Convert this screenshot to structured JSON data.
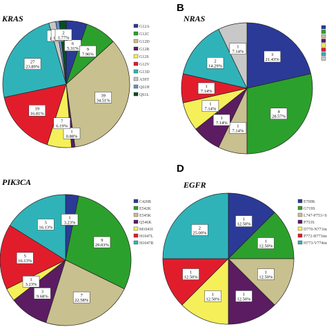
{
  "chart_data": [
    {
      "type": "pie",
      "panel": "",
      "title": "KRAS",
      "series": [
        {
          "name": "G12A",
          "count": 6,
          "percent": "5.31%",
          "color": "#2b3a97"
        },
        {
          "name": "G12C",
          "count": 9,
          "percent": "7.96%",
          "color": "#2ca02c"
        },
        {
          "name": "G12D",
          "count": 39,
          "percent": "34.51%",
          "color": "#c8c08f"
        },
        {
          "name": "G12R",
          "count": 1,
          "percent": "0.88%",
          "color": "#5b1c62"
        },
        {
          "name": "G12S",
          "count": 7,
          "percent": "6.19%",
          "color": "#f5ef5a"
        },
        {
          "name": "G12V",
          "count": 19,
          "percent": "16.81%",
          "color": "#e11d2c"
        },
        {
          "name": "G13D",
          "count": 27,
          "percent": "23.89%",
          "color": "#2fb3b9"
        },
        {
          "name": "A59T",
          "count": 2,
          "percent": "1.77%",
          "color": "#c8c8c8"
        },
        {
          "name": "Q61H",
          "count": 1,
          "percent": "0.88%",
          "color": "#6b8fc2"
        },
        {
          "name": "Q61L",
          "count": 2,
          "percent": "1.77%",
          "color": "#0b4d24"
        }
      ]
    },
    {
      "type": "pie",
      "panel": "B",
      "title": "NRAS",
      "series": [
        {
          "name": "",
          "count": 3,
          "percent": "21.43%",
          "color": "#2b3a97"
        },
        {
          "name": "",
          "count": 4,
          "percent": "28.57%",
          "color": "#2ca02c"
        },
        {
          "name": "",
          "count": 1,
          "percent": "7.14%",
          "color": "#c8c08f"
        },
        {
          "name": "",
          "count": 1,
          "percent": "7.14%",
          "color": "#5b1c62"
        },
        {
          "name": "",
          "count": 1,
          "percent": "7.14%",
          "color": "#f5ef5a"
        },
        {
          "name": "",
          "count": 1,
          "percent": "7.14%",
          "color": "#e11d2c"
        },
        {
          "name": "",
          "count": 2,
          "percent": "14.29%",
          "color": "#2fb3b9"
        },
        {
          "name": "",
          "count": 1,
          "percent": "7.14%",
          "color": "#c8c8c8"
        }
      ]
    },
    {
      "type": "pie",
      "panel": "",
      "title": "PIK3CA",
      "series": [
        {
          "name": "C420R",
          "count": 1,
          "percent": "3.23%",
          "color": "#2b3a97"
        },
        {
          "name": "E542K",
          "count": 9,
          "percent": "29.03%",
          "color": "#2ca02c"
        },
        {
          "name": "E545K",
          "count": 7,
          "percent": "22.58%",
          "color": "#c8c08f"
        },
        {
          "name": "Q546K",
          "count": 3,
          "percent": "9.68%",
          "color": "#5b1c62"
        },
        {
          "name": "M1043I",
          "count": 1,
          "percent": "3.23%",
          "color": "#f5ef5a"
        },
        {
          "name": "H1047L",
          "count": 5,
          "percent": "16.13%",
          "color": "#e11d2c"
        },
        {
          "name": "H1047R",
          "count": 5,
          "percent": "16.13%",
          "color": "#2fb3b9"
        }
      ]
    },
    {
      "type": "pie",
      "panel": "D",
      "title": "EGFR",
      "series": [
        {
          "name": "E709K",
          "count": 1,
          "percent": "12.50%",
          "color": "#2b3a97"
        },
        {
          "name": "G719S",
          "count": 1,
          "percent": "12.50%",
          "color": "#2ca02c"
        },
        {
          "name": "L747-P753>S",
          "count": 1,
          "percent": "12.50%",
          "color": "#c8c08f"
        },
        {
          "name": "P753S",
          "count": 1,
          "percent": "12.50%",
          "color": "#5b1c62"
        },
        {
          "name": "D770-N771ins",
          "count": 1,
          "percent": "12.50%",
          "color": "#f5ef5a"
        },
        {
          "name": "P772-H773ins",
          "count": 1,
          "percent": "12.50%",
          "color": "#e11d2c"
        },
        {
          "name": "H773-V774ins",
          "count": 2,
          "percent": "25.00%",
          "color": "#2fb3b9"
        }
      ]
    }
  ]
}
